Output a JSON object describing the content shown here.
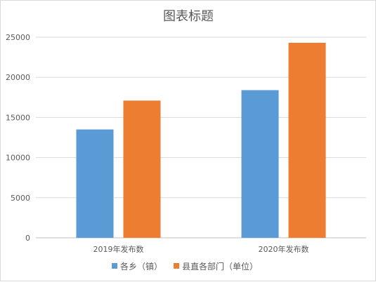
{
  "chart_data": {
    "type": "bar",
    "title": "图表标题",
    "categories": [
      "2019年发布数",
      "2020年发布数"
    ],
    "series": [
      {
        "name": "各乡（镇）",
        "color": "#5b9bd5",
        "values": [
          13500,
          18400
        ]
      },
      {
        "name": "县直各部门（单位）",
        "color": "#ed7d31",
        "values": [
          17100,
          24300
        ]
      }
    ],
    "ylim": [
      0,
      25000
    ],
    "yticks": [
      0,
      5000,
      10000,
      15000,
      20000,
      25000
    ],
    "grid": true,
    "legend_position": "bottom"
  }
}
